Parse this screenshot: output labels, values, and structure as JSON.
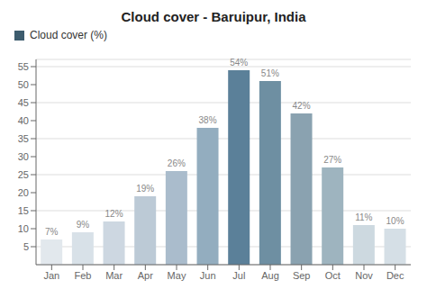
{
  "chart_data": {
    "type": "bar",
    "title": "Cloud cover - Baruipur, India",
    "categories": [
      "Jan",
      "Feb",
      "Mar",
      "Apr",
      "May",
      "Jun",
      "Jul",
      "Aug",
      "Sep",
      "Oct",
      "Nov",
      "Dec"
    ],
    "series": [
      {
        "name": "Cloud cover (%)",
        "color": "#3d5c6e",
        "colors": [
          "#e2e8ed",
          "#d8e1e8",
          "#cdd7e1",
          "#bccad6",
          "#aabccc",
          "#93adbf",
          "#5b8099",
          "#6e8fa2",
          "#8aa2b0",
          "#9eb4bf",
          "#cdd9e0",
          "#d5dfe6"
        ],
        "values": [
          7,
          9,
          12,
          19,
          26,
          38,
          54,
          51,
          42,
          27,
          11,
          10
        ],
        "value_labels": [
          "7%",
          "9%",
          "12%",
          "19%",
          "26%",
          "38%",
          "54%",
          "51%",
          "42%",
          "27%",
          "11%",
          "10%"
        ]
      }
    ],
    "ylim": [
      0,
      57
    ],
    "yticks": [
      5,
      10,
      15,
      20,
      25,
      30,
      35,
      40,
      45,
      50,
      55
    ],
    "grid": true,
    "legend": "upper left",
    "data_labels": true
  }
}
